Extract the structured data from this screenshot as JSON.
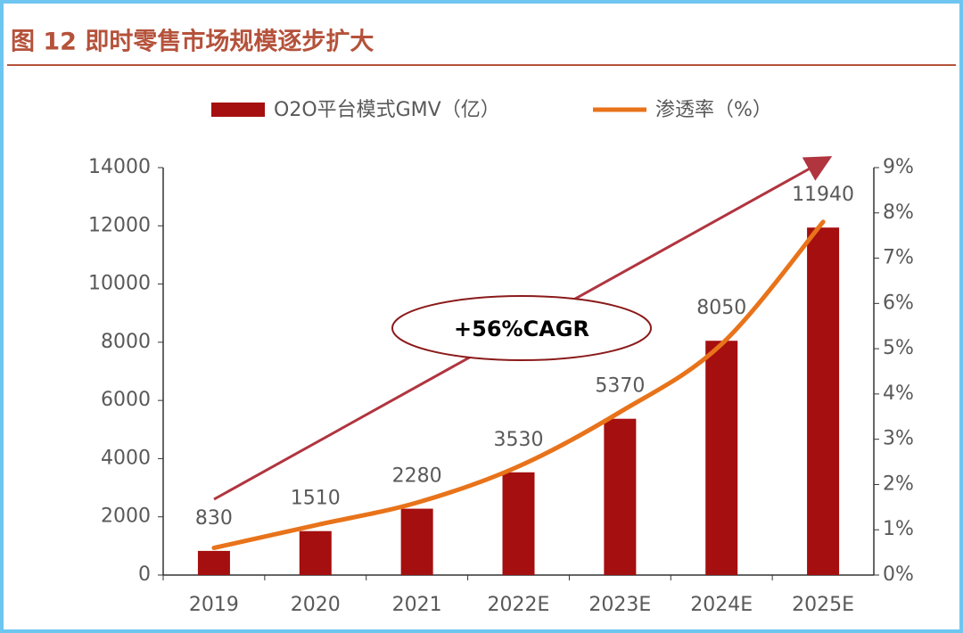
{
  "chart_data": {
    "type": "bar",
    "title": "图 12 即时零售市场规模逐步扩大",
    "annotation": "+56%CAGR",
    "categories": [
      "2019",
      "2020",
      "2021",
      "2022E",
      "2023E",
      "2024E",
      "2025E"
    ],
    "series": [
      {
        "name": "O2O平台模式GMV（亿）",
        "color": "#a50f0f",
        "values": [
          830,
          1510,
          2280,
          3530,
          5370,
          8050,
          11940
        ]
      },
      {
        "name": "渗透率（%）",
        "type": "line",
        "axis": "y2",
        "color": "#e8731a",
        "values": [
          0.6,
          1.1,
          1.6,
          2.4,
          3.6,
          5.1,
          7.8
        ]
      }
    ],
    "ylim": [
      0,
      14000
    ],
    "yticks": [
      0,
      2000,
      4000,
      6000,
      8000,
      10000,
      12000,
      14000
    ],
    "y2lim": [
      0,
      9
    ],
    "y2ticks": [
      {
        "value": 0,
        "label": "0%"
      },
      {
        "value": 1,
        "label": "1%"
      },
      {
        "value": 2,
        "label": "2%"
      },
      {
        "value": 3,
        "label": "3%"
      },
      {
        "value": 4,
        "label": "4%"
      },
      {
        "value": 5,
        "label": "5%"
      },
      {
        "value": 6,
        "label": "6%"
      },
      {
        "value": 7,
        "label": "7%"
      },
      {
        "value": 8,
        "label": "8%"
      },
      {
        "value": 9,
        "label": "9%"
      }
    ],
    "legend": "top"
  }
}
